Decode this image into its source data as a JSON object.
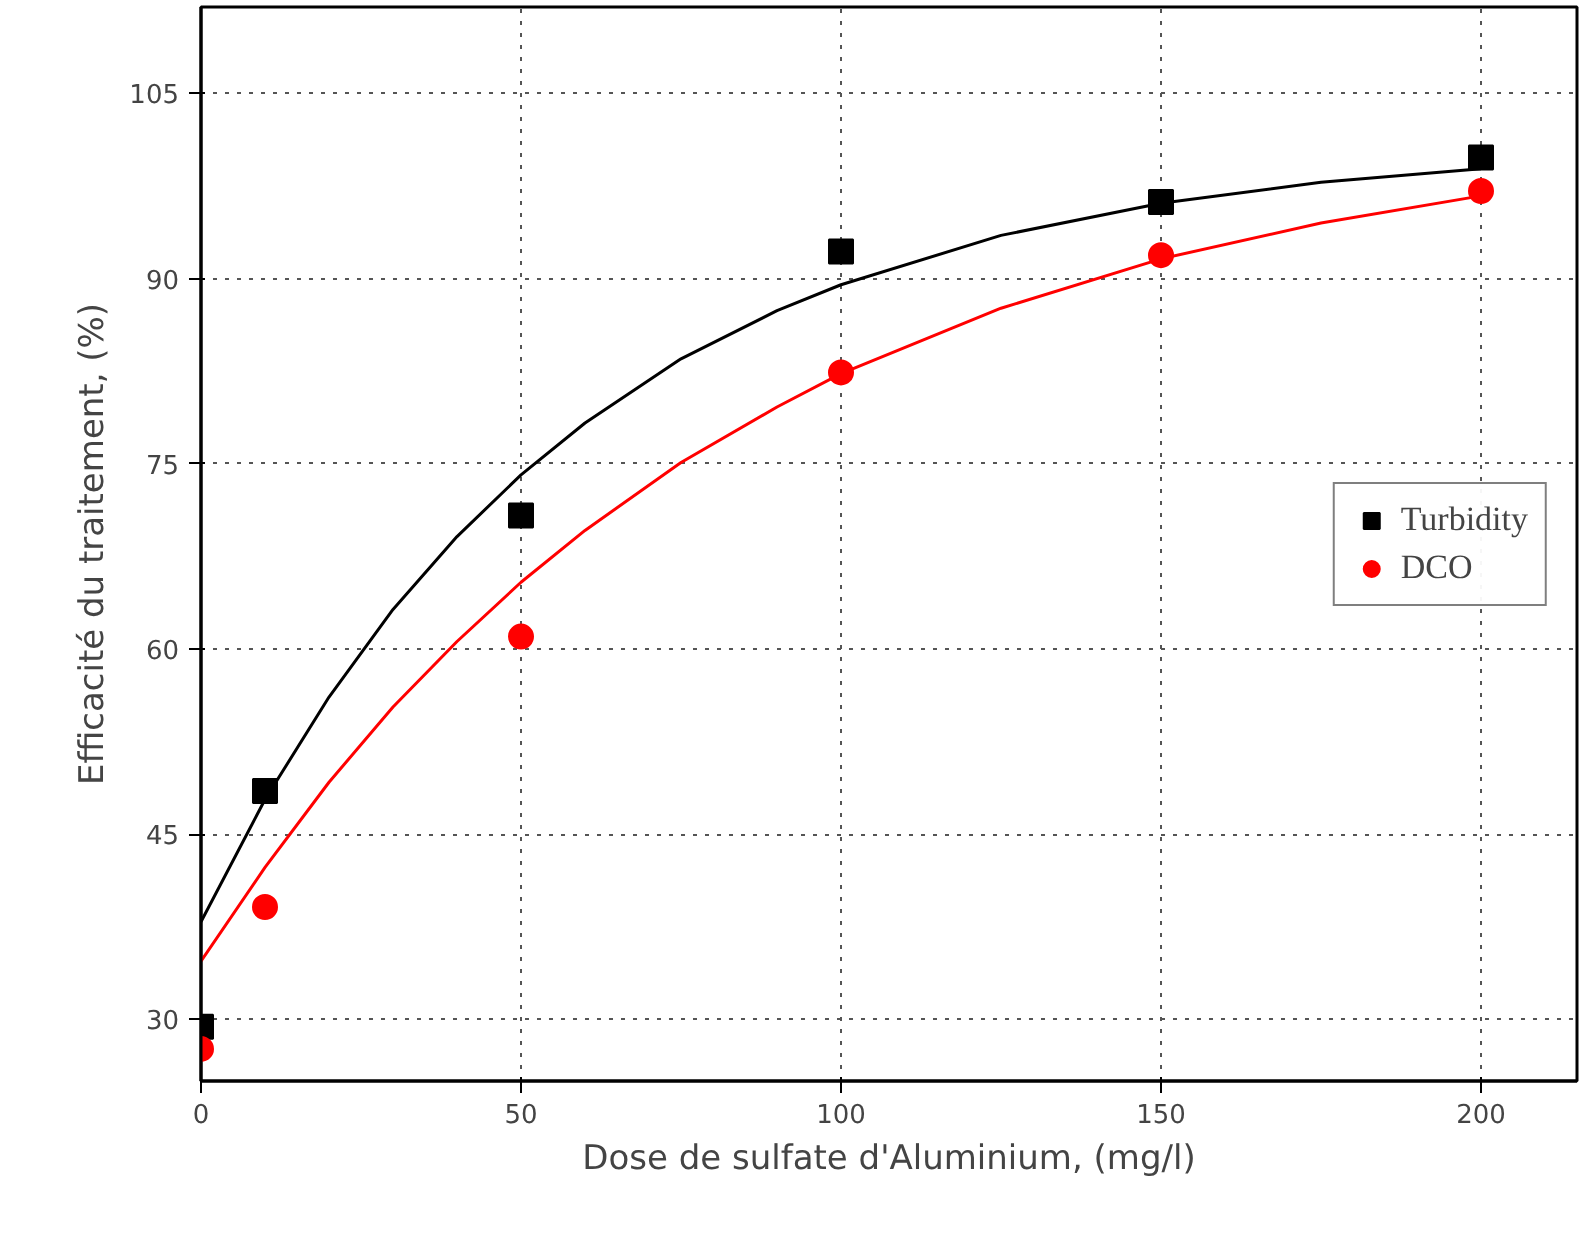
{
  "chart_data": {
    "type": "scatter",
    "xlabel": "Dose de sulfate d'Aluminium, (mg/l)",
    "ylabel": "Efficacité du traitement, (%)",
    "xlim": [
      0,
      215
    ],
    "ylim": [
      25,
      112
    ],
    "xticks": [
      0,
      50,
      100,
      150,
      200
    ],
    "yticks": [
      30,
      45,
      60,
      75,
      90,
      105
    ],
    "grid": true,
    "legend": "right",
    "series": [
      {
        "name": "Turbidity",
        "color": "#000000",
        "marker": "square",
        "x": [
          0,
          10,
          50,
          100,
          150,
          200
        ],
        "values": [
          29.4,
          48.5,
          70.8,
          92.2,
          96.2,
          99.8
        ]
      },
      {
        "name": "DCO",
        "color": "#ff0000",
        "marker": "circle",
        "x": [
          0,
          10,
          50,
          100,
          150,
          200
        ],
        "values": [
          27.6,
          39.1,
          61.0,
          82.4,
          91.9,
          97.1
        ]
      },
      {
        "type": "line",
        "color": "#000000",
        "line_style": "solid",
        "x": [
          0,
          10,
          20,
          30,
          40,
          50,
          60,
          75,
          90,
          100,
          125,
          150,
          175,
          200
        ],
        "values": [
          37.9,
          47.8,
          56.1,
          63.2,
          69.1,
          74.1,
          78.3,
          83.5,
          87.4,
          89.5,
          93.5,
          96.1,
          97.8,
          98.9
        ]
      },
      {
        "type": "line",
        "color": "#ff0000",
        "line_style": "solid",
        "x": [
          0,
          10,
          20,
          30,
          40,
          50,
          60,
          75,
          90,
          100,
          125,
          150,
          175,
          200
        ],
        "values": [
          34.7,
          42.3,
          49.2,
          55.3,
          60.6,
          65.4,
          69.6,
          75.1,
          79.6,
          82.3,
          87.6,
          91.6,
          94.5,
          96.7
        ]
      }
    ]
  }
}
